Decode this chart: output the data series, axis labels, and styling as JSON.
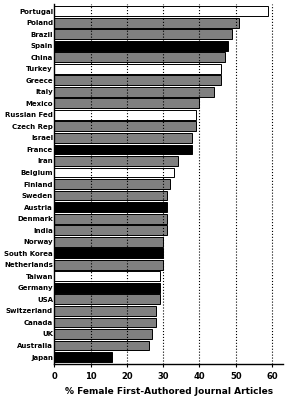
{
  "categories": [
    "Portugal",
    "Poland",
    "Brazil",
    "Spain",
    "China",
    "Turkey",
    "Greece",
    "Italy",
    "Mexico",
    "Russian Fed",
    "Czech Rep",
    "Israel",
    "France",
    "Iran",
    "Belgium",
    "Finland",
    "Sweden",
    "Austria",
    "Denmark",
    "India",
    "Norway",
    "South Korea",
    "Netherlands",
    "Taiwan",
    "Germany",
    "USA",
    "Switzerland",
    "Canada",
    "UK",
    "Australia",
    "Japan"
  ],
  "values": [
    59,
    51,
    49,
    48,
    47,
    46,
    46,
    44,
    40,
    39,
    39,
    38,
    38,
    34,
    33,
    32,
    31,
    31,
    31,
    31,
    30,
    30,
    30,
    29,
    29,
    29,
    28,
    28,
    27,
    26,
    16
  ],
  "colors": [
    "white",
    "gray",
    "gray",
    "black",
    "gray",
    "white",
    "gray",
    "gray",
    "gray",
    "white",
    "gray",
    "gray",
    "black",
    "gray",
    "white",
    "gray",
    "gray",
    "black",
    "gray",
    "gray",
    "gray",
    "black",
    "gray",
    "white",
    "black",
    "gray",
    "gray",
    "gray",
    "gray",
    "gray",
    "black"
  ],
  "xlabel": "% Female First-Authored Journal Articles",
  "xlim": [
    0,
    63
  ],
  "xticks": [
    0,
    10,
    20,
    30,
    40,
    50,
    60
  ],
  "vlines": [
    10,
    20,
    30,
    40,
    50,
    60
  ],
  "bar_edge_color": "black",
  "bar_linewidth": 0.7,
  "background_color": "white"
}
